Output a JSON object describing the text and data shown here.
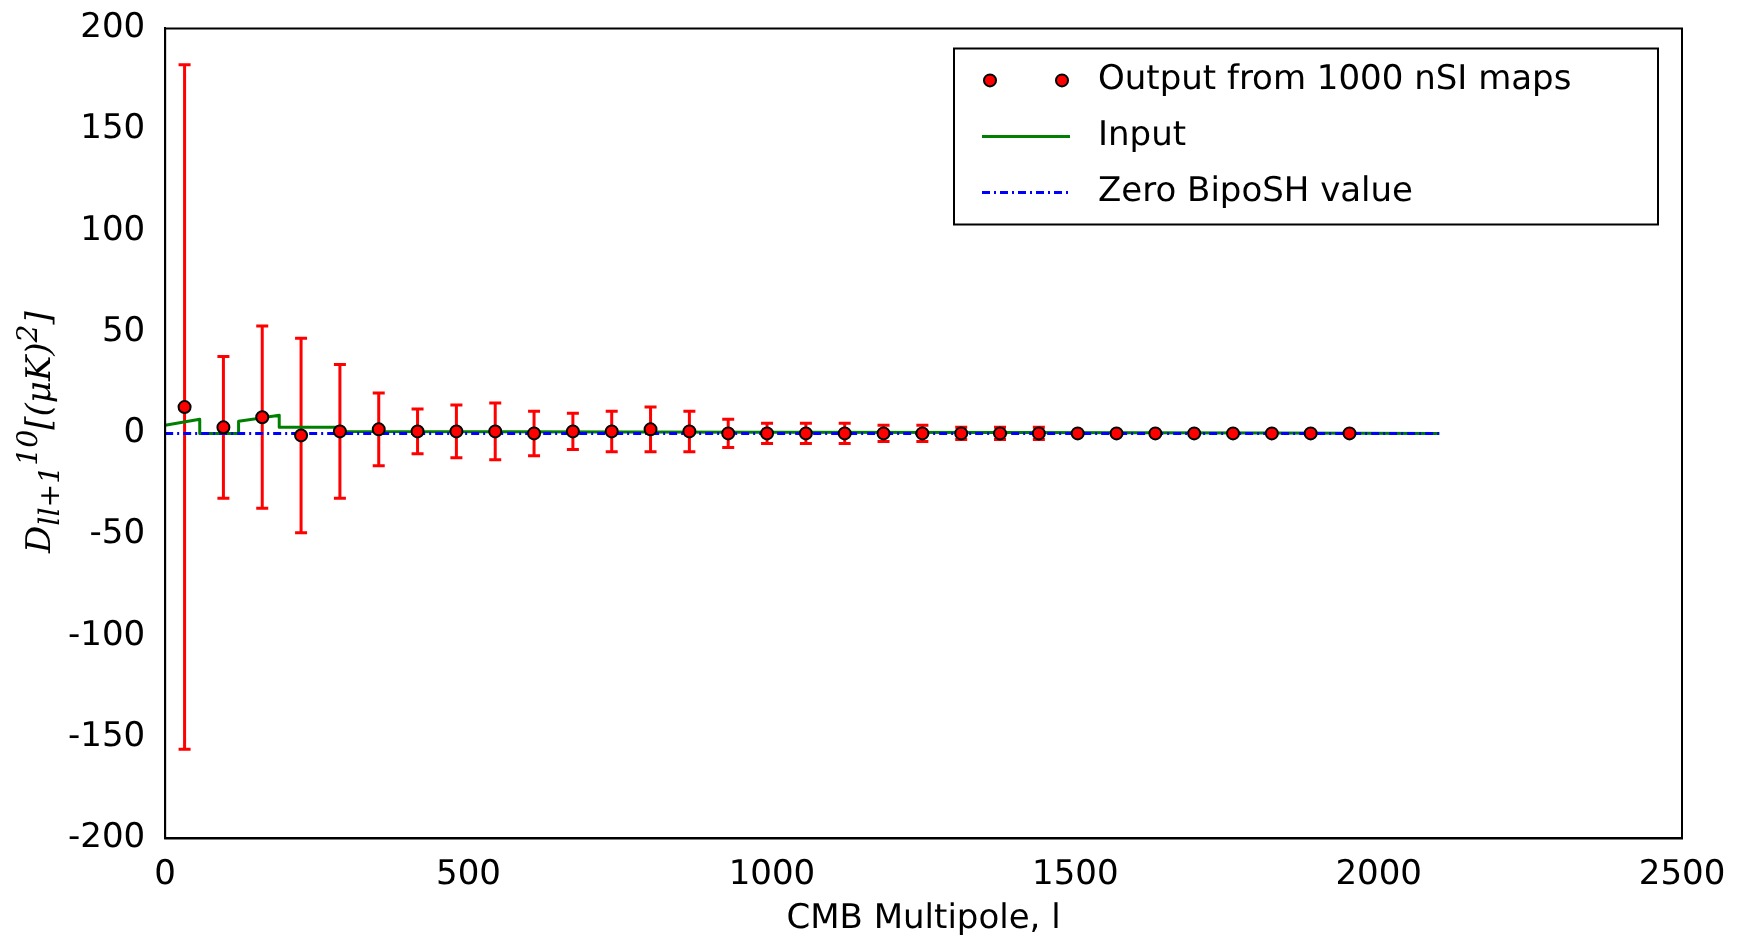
{
  "chart_data": {
    "type": "scatter",
    "xlabel": "CMB Multipole, l",
    "ylabel": "D$_{ll+1}$$^{10}$[(μK)$^{2}$]",
    "xlim": [
      0,
      2500
    ],
    "xticks": [
      0,
      500,
      1000,
      1500,
      2000,
      2500
    ],
    "ylim": [
      -200,
      200
    ],
    "yticks": [
      -200,
      -150,
      -100,
      -50,
      0,
      50,
      100,
      150,
      200
    ],
    "grid": false,
    "legend": "top right",
    "series": [
      {
        "name": "Output from 1000 nSI maps",
        "type": "scatter",
        "color": "#ff0000",
        "marker": "circle",
        "x": [
          32,
          96,
          160,
          224,
          288,
          352,
          416,
          480,
          544,
          608,
          672,
          736,
          800,
          864,
          928,
          992,
          1056,
          1120,
          1184,
          1248,
          1312,
          1376,
          1440,
          1504,
          1568,
          1632,
          1696,
          1760,
          1824,
          1888,
          1952
        ],
        "values": [
          13,
          3,
          8,
          -1,
          1,
          2,
          1,
          1,
          1,
          0,
          1,
          1,
          2,
          1,
          0,
          0,
          0,
          0,
          0,
          0,
          0,
          0,
          0,
          0,
          0,
          0,
          0,
          0,
          0,
          0,
          0
        ],
        "errors": [
          169,
          35,
          45,
          48,
          33,
          18,
          11,
          13,
          14,
          11,
          9,
          10,
          11,
          10,
          7,
          5,
          5,
          5,
          4,
          4,
          3,
          3,
          3,
          null,
          null,
          null,
          null,
          null,
          null,
          null,
          null
        ]
      },
      {
        "name": "Input",
        "type": "line",
        "color": "#008000",
        "marker": "none",
        "line_style": "solid",
        "x": [
          0,
          57,
          57,
          121,
          121,
          188,
          188,
          286,
          286,
          2100
        ],
        "values": [
          4,
          7,
          0,
          0,
          6,
          9,
          3,
          3,
          1,
          0
        ]
      },
      {
        "name": "Zero BipoSH value",
        "type": "line",
        "color": "#0000ff",
        "marker": "none",
        "line_style": "dashed",
        "x": [
          0,
          2100
        ],
        "values": [
          0,
          0
        ]
      }
    ]
  }
}
